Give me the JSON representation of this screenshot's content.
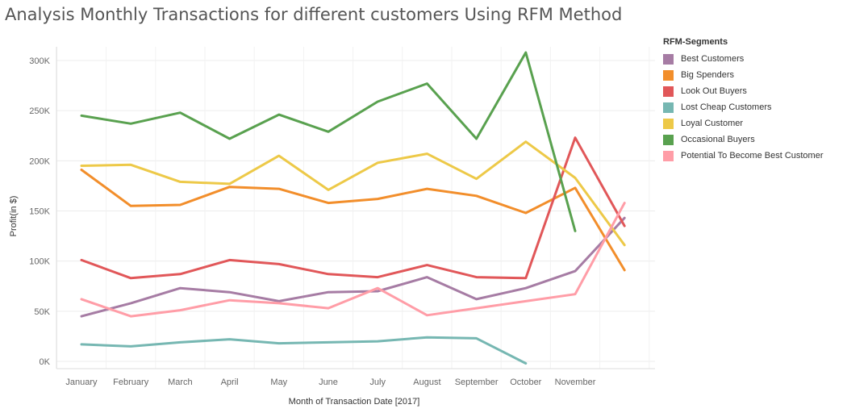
{
  "chart_data": {
    "type": "line",
    "title": "Analysis Monthly Transactions for different customers Using RFM Method",
    "xlabel": "Month of Transaction Date [2017]",
    "ylabel": "Profit(in $)",
    "categories": [
      "January",
      "February",
      "March",
      "April",
      "May",
      "June",
      "July",
      "August",
      "September",
      "October",
      "November",
      ""
    ],
    "y_ticks": [
      "0K",
      "50K",
      "100K",
      "150K",
      "200K",
      "250K",
      "300K"
    ],
    "y_tick_values": [
      0,
      50000,
      100000,
      150000,
      200000,
      250000,
      300000
    ],
    "ylim": [
      0,
      310000
    ],
    "grid": true,
    "legend_title": "RFM-Segments",
    "legend_position": "right",
    "series": [
      {
        "name": "Best Customers",
        "color": "#a67ca4",
        "values": [
          45000,
          58000,
          73000,
          69000,
          60000,
          69000,
          70000,
          84000,
          62000,
          73000,
          90000,
          143000
        ]
      },
      {
        "name": "Big Spenders",
        "color": "#f28e2b",
        "values": [
          191000,
          155000,
          156000,
          174000,
          172000,
          158000,
          162000,
          172000,
          165000,
          148000,
          173000,
          91000
        ]
      },
      {
        "name": "Look Out Buyers",
        "color": "#e15759",
        "values": [
          101000,
          83000,
          87000,
          101000,
          97000,
          87000,
          84000,
          96000,
          84000,
          83000,
          223000,
          135000
        ]
      },
      {
        "name": "Lost Cheap Customers",
        "color": "#76b7b2",
        "values": [
          17000,
          15000,
          19000,
          22000,
          18000,
          19000,
          20000,
          24000,
          23000,
          -2000,
          null,
          null
        ]
      },
      {
        "name": "Loyal Customer",
        "color": "#edc948",
        "values": [
          195000,
          196000,
          179000,
          177000,
          205000,
          171000,
          198000,
          207000,
          182000,
          219000,
          183000,
          116000
        ]
      },
      {
        "name": "Occasional Buyers",
        "color": "#59a14f",
        "values": [
          245000,
          237000,
          248000,
          222000,
          246000,
          229000,
          259000,
          277000,
          222000,
          308000,
          130000,
          null
        ]
      },
      {
        "name": "Potential To Become Best Customer",
        "color": "#ff9da7",
        "values": [
          62000,
          45000,
          51000,
          61000,
          58000,
          53000,
          73000,
          46000,
          53000,
          60000,
          67000,
          158000
        ]
      }
    ]
  }
}
